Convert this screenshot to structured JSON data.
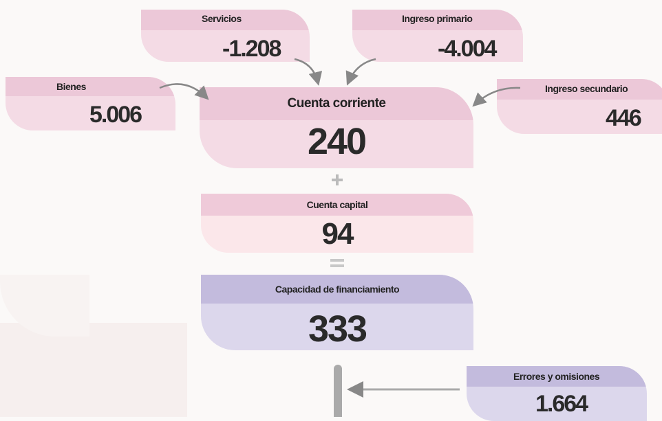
{
  "nodes": [
    {
      "label": "Servicios",
      "value": "-1.208"
    },
    {
      "label": "Ingreso primario",
      "value": "-4.004"
    },
    {
      "label": "Bienes",
      "value": "5.006"
    },
    {
      "label": "Cuenta corriente",
      "value": "240"
    },
    {
      "label": "Ingreso secundario",
      "value": "446"
    },
    {
      "label": "Cuenta capital",
      "value": "94"
    },
    {
      "label": "Capacidad de financiamiento",
      "value": "333"
    },
    {
      "label": "Errores y omisiones",
      "value": "1.664"
    }
  ]
}
